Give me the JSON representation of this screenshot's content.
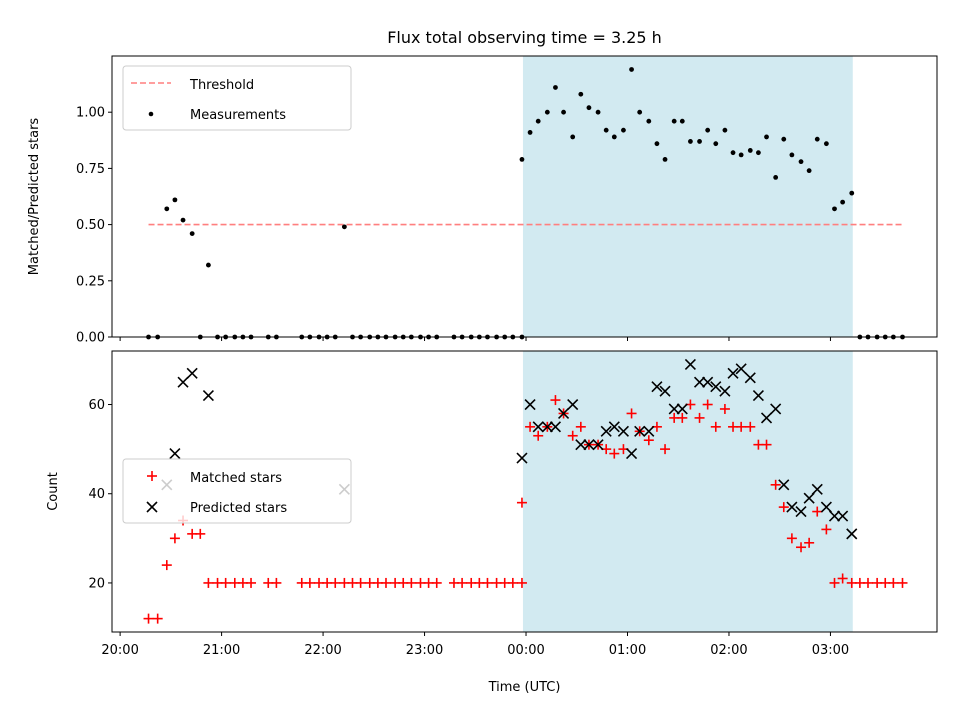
{
  "chart_data": [
    {
      "type": "scatter",
      "title": "Flux total observing time = 3.25 h",
      "xlabel": "",
      "ylabel": "Matched/Predicted stars",
      "ylim": [
        0.0,
        1.25
      ],
      "y_ticks": [
        "0.00",
        "0.25",
        "0.50",
        "0.75",
        "1.00"
      ],
      "x_unit": "hours after 20:00 UTC",
      "xlim": [
        -0.08,
        8.05
      ],
      "observing_window": [
        3.97,
        7.22
      ],
      "threshold": {
        "name": "Threshold",
        "value": 0.5,
        "x": [
          0.28,
          7.72
        ],
        "color": "#ff7f7f"
      },
      "legend": {
        "placement": "upper left"
      },
      "series": [
        {
          "name": "Measurements",
          "color": "#000000",
          "marker": "dot",
          "x": [
            0.28,
            0.37,
            0.46,
            0.54,
            0.62,
            0.71,
            0.79,
            0.87,
            0.96,
            1.04,
            1.13,
            1.21,
            1.29,
            1.46,
            1.54,
            1.79,
            1.87,
            1.96,
            2.04,
            2.12,
            2.21,
            2.29,
            2.37,
            2.46,
            2.54,
            2.62,
            2.71,
            2.79,
            2.87,
            2.96,
            3.04,
            3.12,
            3.29,
            3.37,
            3.46,
            3.54,
            3.62,
            3.71,
            3.79,
            3.87,
            3.96,
            3.96,
            4.04,
            4.12,
            4.21,
            4.29,
            4.37,
            4.46,
            4.54,
            4.62,
            4.71,
            4.79,
            4.87,
            4.96,
            5.04,
            5.12,
            5.21,
            5.29,
            5.37,
            5.46,
            5.54,
            5.62,
            5.71,
            5.79,
            5.87,
            5.96,
            6.04,
            6.12,
            6.21,
            6.29,
            6.37,
            6.46,
            6.54,
            6.62,
            6.71,
            6.79,
            6.87,
            6.96,
            7.04,
            7.12,
            7.21,
            7.29,
            7.37,
            7.46,
            7.54,
            7.62,
            7.71
          ],
          "y": [
            0.0,
            0.0,
            0.57,
            0.61,
            0.52,
            0.46,
            0.0,
            0.32,
            0.0,
            0.0,
            0.0,
            0.0,
            0.0,
            0.0,
            0.0,
            0.0,
            0.0,
            0.0,
            0.0,
            0.0,
            0.49,
            0.0,
            0.0,
            0.0,
            0.0,
            0.0,
            0.0,
            0.0,
            0.0,
            0.0,
            0.0,
            0.0,
            0.0,
            0.0,
            0.0,
            0.0,
            0.0,
            0.0,
            0.0,
            0.0,
            0.0,
            0.79,
            0.91,
            0.96,
            1.0,
            1.11,
            1.0,
            0.89,
            1.08,
            1.02,
            1.0,
            0.92,
            0.89,
            0.92,
            1.19,
            1.0,
            0.96,
            0.86,
            0.79,
            0.96,
            0.96,
            0.87,
            0.87,
            0.92,
            0.86,
            0.92,
            0.82,
            0.81,
            0.83,
            0.82,
            0.89,
            0.71,
            0.88,
            0.81,
            0.78,
            0.74,
            0.88,
            0.86,
            0.57,
            0.6,
            0.64,
            0.0,
            0.0,
            0.0,
            0.0,
            0.0,
            0.0
          ]
        }
      ]
    },
    {
      "type": "scatter",
      "title": "",
      "xlabel": "Time (UTC)",
      "ylabel": "Count",
      "ylim": [
        9,
        72
      ],
      "y_ticks": [
        "20",
        "40",
        "60"
      ],
      "x_ticks": [
        "20:00",
        "21:00",
        "22:00",
        "23:00",
        "00:00",
        "01:00",
        "02:00",
        "03:00"
      ],
      "x_unit": "hours after 20:00 UTC",
      "xlim": [
        -0.08,
        8.05
      ],
      "observing_window": [
        3.97,
        7.22
      ],
      "legend": {
        "placement": "center left"
      },
      "series": [
        {
          "name": "Matched stars",
          "color": "#ff0000",
          "marker": "plus",
          "x": [
            0.28,
            0.37,
            0.46,
            0.54,
            0.62,
            0.71,
            0.79,
            0.87,
            0.96,
            1.04,
            1.13,
            1.21,
            1.29,
            1.46,
            1.54,
            1.79,
            1.87,
            1.96,
            2.04,
            2.12,
            2.21,
            2.29,
            2.37,
            2.46,
            2.54,
            2.62,
            2.71,
            2.79,
            2.87,
            2.96,
            3.04,
            3.12,
            3.29,
            3.37,
            3.46,
            3.54,
            3.62,
            3.71,
            3.79,
            3.87,
            3.96,
            3.96,
            4.04,
            4.12,
            4.21,
            4.29,
            4.37,
            4.46,
            4.54,
            4.62,
            4.71,
            4.79,
            4.87,
            4.96,
            5.04,
            5.12,
            5.21,
            5.29,
            5.37,
            5.46,
            5.54,
            5.62,
            5.71,
            5.79,
            5.87,
            5.96,
            6.04,
            6.12,
            6.21,
            6.29,
            6.37,
            6.46,
            6.54,
            6.62,
            6.71,
            6.79,
            6.87,
            6.96,
            7.04,
            7.12,
            7.21,
            7.29,
            7.37,
            7.46,
            7.54,
            7.62,
            7.71
          ],
          "y": [
            12,
            12,
            24,
            30,
            34,
            31,
            31,
            20,
            20,
            20,
            20,
            20,
            20,
            20,
            20,
            20,
            20,
            20,
            20,
            20,
            20,
            20,
            20,
            20,
            20,
            20,
            20,
            20,
            20,
            20,
            20,
            20,
            20,
            20,
            20,
            20,
            20,
            20,
            20,
            20,
            20,
            38,
            55,
            53,
            55,
            61,
            58,
            53,
            55,
            51,
            51,
            50,
            49,
            50,
            58,
            54,
            52,
            55,
            50,
            57,
            57,
            60,
            57,
            60,
            55,
            59,
            55,
            55,
            55,
            51,
            51,
            42,
            37,
            30,
            28,
            29,
            36,
            32,
            20,
            21,
            20,
            20,
            20,
            20,
            20,
            20,
            20
          ]
        },
        {
          "name": "Predicted stars",
          "color": "#000000",
          "marker": "x",
          "x": [
            0.46,
            0.54,
            0.62,
            0.71,
            0.87,
            2.21,
            3.96,
            4.04,
            4.12,
            4.21,
            4.29,
            4.37,
            4.46,
            4.54,
            4.62,
            4.71,
            4.79,
            4.87,
            4.96,
            5.04,
            5.12,
            5.21,
            5.29,
            5.37,
            5.46,
            5.54,
            5.62,
            5.71,
            5.79,
            5.87,
            5.96,
            6.04,
            6.12,
            6.21,
            6.29,
            6.37,
            6.46,
            6.54,
            6.62,
            6.71,
            6.79,
            6.87,
            6.96,
            7.04,
            7.12,
            7.21
          ],
          "y": [
            42,
            49,
            65,
            67,
            62,
            41,
            48,
            60,
            55,
            55,
            55,
            58,
            60,
            51,
            51,
            51,
            54,
            55,
            54,
            49,
            54,
            54,
            64,
            63,
            59,
            59,
            69,
            65,
            65,
            64,
            63,
            67,
            68,
            66,
            62,
            57,
            59,
            42,
            37,
            36,
            39,
            41,
            37,
            35,
            35,
            31
          ]
        }
      ]
    }
  ]
}
